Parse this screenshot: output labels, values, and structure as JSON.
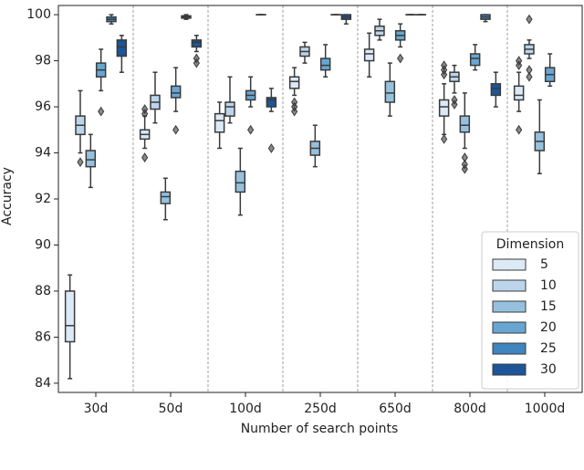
{
  "chart_data": {
    "type": "box",
    "x_label": "Number of search points",
    "y_label": "Accuracy",
    "categories": [
      "30d",
      "50d",
      "100d",
      "250d",
      "650d",
      "800d",
      "1000d"
    ],
    "ylim": [
      83.6,
      100.4
    ],
    "yticks": [
      84,
      86,
      88,
      90,
      92,
      94,
      96,
      98,
      100
    ],
    "legend_title": "Dimension",
    "legend_position": "lower right",
    "series": [
      {
        "name": "5",
        "color": "#dce9f6",
        "values": [
          {
            "min": 84.2,
            "q1": 85.8,
            "median": 86.5,
            "q3": 88.0,
            "max": 88.7,
            "outliers": []
          },
          {
            "min": 94.2,
            "q1": 94.6,
            "median": 94.8,
            "q3": 95.0,
            "max": 95.6,
            "outliers": [
              93.8,
              95.7,
              95.9
            ]
          },
          {
            "min": 94.2,
            "q1": 94.9,
            "median": 95.4,
            "q3": 95.7,
            "max": 96.2,
            "outliers": []
          },
          {
            "min": 96.5,
            "q1": 96.8,
            "median": 97.1,
            "q3": 97.3,
            "max": 97.7,
            "outliers": [
              95.8,
              96.0,
              96.2
            ]
          },
          {
            "min": 97.3,
            "q1": 98.0,
            "median": 98.3,
            "q3": 98.5,
            "max": 99.2,
            "outliers": []
          },
          {
            "min": 94.8,
            "q1": 95.6,
            "median": 96.0,
            "q3": 96.3,
            "max": 97.0,
            "outliers": [
              94.6,
              97.4,
              97.6,
              97.8
            ]
          },
          {
            "min": 95.8,
            "q1": 96.3,
            "median": 96.5,
            "q3": 96.9,
            "max": 97.5,
            "outliers": [
              95.0,
              97.8,
              98.0
            ]
          }
        ]
      },
      {
        "name": "10",
        "color": "#bcd5ea",
        "values": [
          {
            "min": 94.0,
            "q1": 94.8,
            "median": 95.2,
            "q3": 95.6,
            "max": 96.7,
            "outliers": [
              93.6
            ]
          },
          {
            "min": 95.3,
            "q1": 95.9,
            "median": 96.2,
            "q3": 96.5,
            "max": 97.5,
            "outliers": []
          },
          {
            "min": 95.3,
            "q1": 95.6,
            "median": 96.0,
            "q3": 96.2,
            "max": 97.3,
            "outliers": []
          },
          {
            "min": 97.9,
            "q1": 98.2,
            "median": 98.4,
            "q3": 98.6,
            "max": 98.8,
            "outliers": []
          },
          {
            "min": 98.9,
            "q1": 99.1,
            "median": 99.3,
            "q3": 99.5,
            "max": 99.8,
            "outliers": []
          },
          {
            "min": 96.6,
            "q1": 97.1,
            "median": 97.3,
            "q3": 97.5,
            "max": 97.8,
            "outliers": [
              96.1,
              96.3
            ]
          },
          {
            "min": 98.1,
            "q1": 98.3,
            "median": 98.5,
            "q3": 98.7,
            "max": 98.9,
            "outliers": [
              97.3,
              97.6,
              99.8
            ]
          }
        ]
      },
      {
        "name": "15",
        "color": "#95c1de",
        "values": [
          {
            "min": 92.5,
            "q1": 93.4,
            "median": 93.7,
            "q3": 94.1,
            "max": 94.8,
            "outliers": []
          },
          {
            "min": 91.1,
            "q1": 91.8,
            "median": 92.1,
            "q3": 92.3,
            "max": 92.9,
            "outliers": []
          },
          {
            "min": 91.3,
            "q1": 92.3,
            "median": 92.7,
            "q3": 93.2,
            "max": 94.2,
            "outliers": []
          },
          {
            "min": 93.4,
            "q1": 93.9,
            "median": 94.2,
            "q3": 94.5,
            "max": 95.2,
            "outliers": []
          },
          {
            "min": 95.6,
            "q1": 96.2,
            "median": 96.6,
            "q3": 97.1,
            "max": 97.9,
            "outliers": []
          },
          {
            "min": 94.2,
            "q1": 94.9,
            "median": 95.2,
            "q3": 95.6,
            "max": 96.6,
            "outliers": [
              93.3,
              93.5,
              93.8
            ]
          },
          {
            "min": 93.1,
            "q1": 94.1,
            "median": 94.5,
            "q3": 94.9,
            "max": 96.3,
            "outliers": []
          }
        ]
      },
      {
        "name": "20",
        "color": "#68a6d2",
        "values": [
          {
            "min": 96.7,
            "q1": 97.3,
            "median": 97.6,
            "q3": 97.9,
            "max": 98.5,
            "outliers": [
              95.8
            ]
          },
          {
            "min": 95.8,
            "q1": 96.4,
            "median": 96.6,
            "q3": 96.9,
            "max": 97.7,
            "outliers": [
              95.0
            ]
          },
          {
            "min": 96.0,
            "q1": 96.3,
            "median": 96.5,
            "q3": 96.7,
            "max": 97.3,
            "outliers": [
              95.0
            ]
          },
          {
            "min": 97.3,
            "q1": 97.6,
            "median": 97.8,
            "q3": 98.1,
            "max": 98.7,
            "outliers": []
          },
          {
            "min": 98.6,
            "q1": 98.9,
            "median": 99.1,
            "q3": 99.3,
            "max": 99.6,
            "outliers": [
              98.1
            ]
          },
          {
            "min": 97.6,
            "q1": 97.8,
            "median": 98.1,
            "q3": 98.3,
            "max": 98.7,
            "outliers": []
          },
          {
            "min": 96.9,
            "q1": 97.1,
            "median": 97.4,
            "q3": 97.7,
            "max": 98.3,
            "outliers": []
          }
        ]
      },
      {
        "name": "25",
        "color": "#3f85c0",
        "values": [
          {
            "min": 99.6,
            "q1": 99.7,
            "median": 99.8,
            "q3": 99.9,
            "max": 100,
            "outliers": []
          },
          {
            "min": 99.8,
            "q1": 99.85,
            "median": 99.9,
            "q3": 99.95,
            "max": 100,
            "outliers": []
          },
          {
            "min": 100,
            "q1": 100,
            "median": 100,
            "q3": 100,
            "max": 100,
            "outliers": []
          },
          {
            "min": 100,
            "q1": 100,
            "median": 100,
            "q3": 100,
            "max": 100,
            "outliers": []
          },
          {
            "min": 100,
            "q1": 100,
            "median": 100,
            "q3": 100,
            "max": 100,
            "outliers": []
          },
          {
            "min": 99.7,
            "q1": 99.8,
            "median": 99.9,
            "q3": 100,
            "max": 100,
            "outliers": []
          },
          null
        ]
      },
      {
        "name": "30",
        "color": "#1d5598",
        "values": [
          {
            "min": 97.5,
            "q1": 98.2,
            "median": 98.6,
            "q3": 98.9,
            "max": 99.1,
            "outliers": []
          },
          {
            "min": 98.4,
            "q1": 98.6,
            "median": 98.8,
            "q3": 98.9,
            "max": 99.1,
            "outliers": [
              97.9,
              98.1
            ]
          },
          {
            "min": 95.8,
            "q1": 96.0,
            "median": 96.3,
            "q3": 96.4,
            "max": 96.8,
            "outliers": [
              94.2
            ]
          },
          {
            "min": 99.6,
            "q1": 99.8,
            "median": 99.9,
            "q3": 100,
            "max": 100,
            "outliers": []
          },
          {
            "min": 100,
            "q1": 100,
            "median": 100,
            "q3": 100,
            "max": 100,
            "outliers": []
          },
          {
            "min": 96.0,
            "q1": 96.5,
            "median": 96.8,
            "q3": 97.0,
            "max": 97.5,
            "outliers": []
          },
          null
        ]
      }
    ]
  }
}
